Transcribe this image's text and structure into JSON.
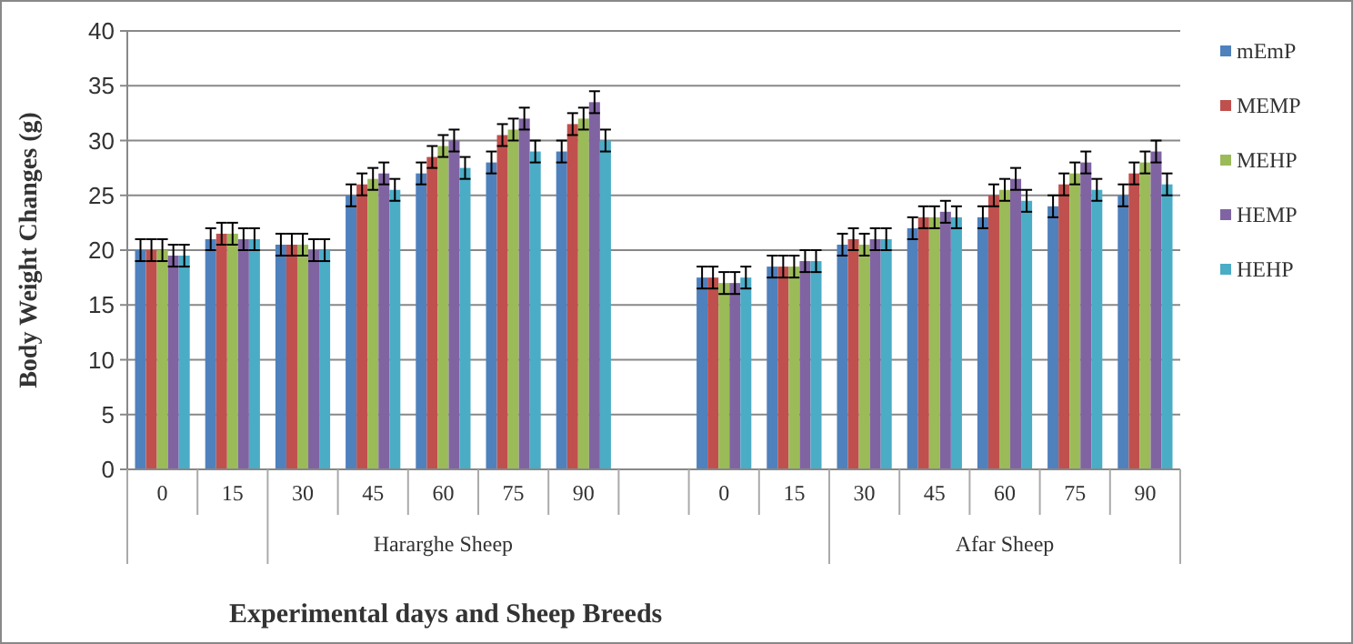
{
  "chart_data": {
    "type": "bar",
    "xlabel": "Experimental days and Sheep Breeds",
    "ylabel": "Body Weight Changes (g)",
    "categories": [
      "0",
      "15",
      "30",
      "45",
      "60",
      "75",
      "90",
      null,
      "0",
      "15",
      "30",
      "45",
      "60",
      "75",
      "90"
    ],
    "series": [
      {
        "name": "mEmP",
        "color": "#4f81bd",
        "values": [
          20,
          21,
          20.5,
          25,
          27,
          28,
          29,
          null,
          17.5,
          18.5,
          20.5,
          22,
          23,
          24,
          25
        ],
        "errors": [
          1,
          1,
          1,
          1,
          1,
          1,
          1,
          null,
          1,
          1,
          1,
          1,
          1,
          1,
          1
        ]
      },
      {
        "name": "MEMP",
        "color": "#c0504d",
        "values": [
          20,
          21.5,
          20.5,
          26,
          28.5,
          30.5,
          31.5,
          null,
          17.5,
          18.5,
          21,
          23,
          25,
          26,
          27
        ],
        "errors": [
          1,
          1,
          1,
          1,
          1,
          1,
          1,
          null,
          1,
          1,
          1,
          1,
          1,
          1,
          1
        ]
      },
      {
        "name": "MEHP",
        "color": "#9bbb59",
        "values": [
          20,
          21.5,
          20.5,
          26.5,
          29.5,
          31,
          32,
          null,
          17,
          18.5,
          20.5,
          23,
          25.5,
          27,
          28
        ],
        "errors": [
          1,
          1,
          1,
          1,
          1,
          1,
          1,
          null,
          1,
          1,
          1,
          1,
          1,
          1,
          1
        ]
      },
      {
        "name": "HEMP",
        "color": "#8064a2",
        "values": [
          19.5,
          21,
          20,
          27,
          30,
          32,
          33.5,
          null,
          17,
          19,
          21,
          23.5,
          26.5,
          28,
          29
        ],
        "errors": [
          1,
          1,
          1,
          1,
          1,
          1,
          1,
          null,
          1,
          1,
          1,
          1,
          1,
          1,
          1
        ]
      },
      {
        "name": "HEHP",
        "color": "#4bacc6",
        "values": [
          19.5,
          21,
          20,
          25.5,
          27.5,
          29,
          30,
          null,
          17.5,
          19,
          21,
          23,
          24.5,
          25.5,
          26
        ],
        "errors": [
          1,
          1,
          1,
          1,
          1,
          1,
          1,
          null,
          1,
          1,
          1,
          1,
          1,
          1,
          1
        ]
      }
    ],
    "annotations": [
      "Hararghe Sheep",
      "Afar Sheep"
    ],
    "ylim": [
      0,
      40
    ],
    "yticks": [
      0,
      5,
      10,
      15,
      20,
      25,
      30,
      35,
      40
    ],
    "grid": "y",
    "legend": "right"
  }
}
